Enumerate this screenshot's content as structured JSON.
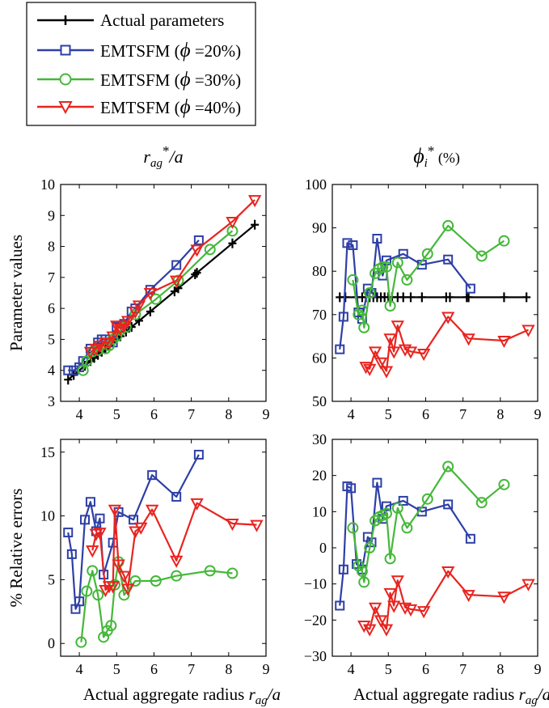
{
  "figure": {
    "col_titles": [
      {
        "base": "r",
        "sub": "ag",
        "sup": "*",
        "tail": "/a"
      },
      {
        "base": "ϕ",
        "sub": "i",
        "sup": "*",
        "tail": " (%)"
      }
    ],
    "xlabel": {
      "prefix": "Actual aggregate radius ",
      "base": "r",
      "sub": "ag",
      "tail": "/a"
    },
    "ylabel_top": "Parameter values",
    "ylabel_bottom": "% Relative errors"
  },
  "legend": {
    "entries": [
      {
        "series": "actual",
        "text": "Actual parameters"
      },
      {
        "series": "s20",
        "prefix": "EMTSFM (",
        "phi": "ϕ",
        "suffix": " =20%)"
      },
      {
        "series": "s30",
        "prefix": "EMTSFM (",
        "phi": "ϕ",
        "suffix": " =30%)"
      },
      {
        "series": "s40",
        "prefix": "EMTSFM (",
        "phi": "ϕ",
        "suffix": " =40%)"
      }
    ]
  },
  "colors": {
    "actual": "#000000",
    "s20": "#2e3fa6",
    "s30": "#45b83a",
    "s40": "#e8241f"
  },
  "chart_data": [
    {
      "type": "line",
      "panel": "top-left",
      "xlim": [
        3.5,
        9
      ],
      "ylim": [
        3,
        10
      ],
      "xticks": [
        4,
        5,
        6,
        7,
        8,
        9
      ],
      "yticks": [
        3,
        4,
        5,
        6,
        7,
        8,
        9,
        10
      ],
      "series": [
        {
          "key": "actual",
          "marker": "plus",
          "x": [
            3.7,
            3.85,
            4.15,
            4.3,
            4.4,
            4.5,
            4.6,
            4.7,
            4.8,
            4.9,
            5.0,
            5.1,
            5.25,
            5.4,
            5.6,
            5.9,
            6.55,
            6.65,
            7.1,
            7.15,
            8.1,
            8.7
          ],
          "y": [
            3.7,
            3.85,
            4.15,
            4.3,
            4.4,
            4.5,
            4.6,
            4.7,
            4.8,
            4.9,
            5.0,
            5.1,
            5.25,
            5.4,
            5.6,
            5.9,
            6.55,
            6.65,
            7.1,
            7.15,
            8.1,
            8.7
          ]
        },
        {
          "key": "s20",
          "marker": "square",
          "x": [
            3.7,
            3.85,
            4.0,
            4.1,
            4.3,
            4.5,
            4.6,
            4.7,
            4.9,
            5.0,
            5.2,
            5.4,
            5.5,
            5.9,
            6.6,
            7.2
          ],
          "y": [
            4.0,
            4.0,
            4.1,
            4.3,
            4.7,
            4.9,
            5.0,
            5.0,
            4.9,
            5.4,
            5.5,
            5.9,
            6.0,
            6.6,
            7.4,
            8.2
          ]
        },
        {
          "key": "s30",
          "marker": "circle",
          "x": [
            4.1,
            4.2,
            4.35,
            4.5,
            4.7,
            4.8,
            4.9,
            5.0,
            5.1,
            5.25,
            5.5,
            6.05,
            6.65,
            7.5,
            8.1
          ],
          "y": [
            4.0,
            4.3,
            4.6,
            4.65,
            4.7,
            4.8,
            5.0,
            5.1,
            5.3,
            5.4,
            5.8,
            6.3,
            6.9,
            7.9,
            8.5
          ]
        },
        {
          "key": "s40",
          "marker": "triangle",
          "x": [
            4.3,
            4.45,
            4.55,
            4.7,
            4.8,
            4.9,
            5.0,
            5.1,
            5.2,
            5.3,
            5.5,
            5.6,
            5.9,
            6.6,
            7.15,
            8.1,
            8.7
          ],
          "y": [
            4.6,
            4.7,
            4.8,
            4.9,
            4.9,
            5.1,
            5.45,
            5.35,
            5.45,
            5.6,
            5.9,
            6.1,
            6.5,
            6.9,
            7.9,
            8.8,
            9.5
          ]
        }
      ]
    },
    {
      "type": "line",
      "panel": "top-right",
      "xlim": [
        3.5,
        9
      ],
      "ylim": [
        50,
        100
      ],
      "xticks": [
        4,
        5,
        6,
        7,
        8,
        9
      ],
      "yticks": [
        50,
        60,
        70,
        80,
        90,
        100
      ],
      "series": [
        {
          "key": "actual",
          "marker": "plus",
          "x": [
            3.7,
            3.85,
            4.15,
            4.3,
            4.4,
            4.5,
            4.6,
            4.7,
            4.8,
            4.9,
            5.0,
            5.1,
            5.25,
            5.4,
            5.6,
            5.9,
            6.55,
            6.65,
            7.1,
            7.15,
            8.1,
            8.7
          ],
          "y": [
            74,
            74,
            74,
            74,
            74,
            74,
            74,
            74,
            74,
            74,
            74,
            74,
            74,
            74,
            74,
            74,
            74,
            74,
            74,
            74,
            74,
            74
          ]
        },
        {
          "key": "s20",
          "marker": "square",
          "x": [
            3.7,
            3.8,
            3.9,
            4.05,
            4.2,
            4.3,
            4.45,
            4.55,
            4.7,
            4.85,
            4.95,
            5.4,
            5.9,
            6.6,
            7.2
          ],
          "y": [
            62,
            69.5,
            86.5,
            86,
            70.5,
            69,
            76,
            75,
            87.5,
            79,
            82.5,
            84,
            81.5,
            82.7,
            76
          ]
        },
        {
          "key": "s30",
          "marker": "circle",
          "x": [
            4.05,
            4.2,
            4.3,
            4.35,
            4.5,
            4.65,
            4.75,
            4.85,
            4.95,
            5.05,
            5.25,
            5.5,
            6.05,
            6.6,
            7.5,
            8.1
          ],
          "y": [
            78,
            70,
            71,
            67,
            75,
            79.5,
            80.5,
            81,
            81,
            72,
            82,
            78,
            84,
            90.5,
            83.5,
            87
          ]
        },
        {
          "key": "s40",
          "marker": "triangle",
          "x": [
            4.4,
            4.5,
            4.65,
            4.8,
            4.95,
            5.05,
            5.15,
            5.25,
            5.45,
            5.6,
            5.95,
            6.6,
            7.15,
            8.1,
            8.75
          ],
          "y": [
            58,
            57.5,
            61.5,
            59,
            57,
            64.5,
            61.5,
            67.5,
            62,
            61.5,
            61,
            69.5,
            64.5,
            64,
            66.5
          ]
        }
      ]
    },
    {
      "type": "line",
      "panel": "bottom-left",
      "xlim": [
        3.5,
        9
      ],
      "ylim": [
        -1,
        16
      ],
      "xticks": [
        4,
        5,
        6,
        7,
        8,
        9
      ],
      "yticks": [
        0,
        5,
        10,
        15
      ],
      "series": [
        {
          "key": "s20",
          "marker": "square",
          "x": [
            3.7,
            3.8,
            3.9,
            4.0,
            4.15,
            4.3,
            4.45,
            4.55,
            4.65,
            4.9,
            5.05,
            5.45,
            5.95,
            6.6,
            7.2
          ],
          "y": [
            8.7,
            7.0,
            2.7,
            3.3,
            9.7,
            11.1,
            8.8,
            9.8,
            5.4,
            7.9,
            10.3,
            9.7,
            13.2,
            11.5,
            14.8
          ]
        },
        {
          "key": "s30",
          "marker": "circle",
          "x": [
            4.05,
            4.2,
            4.35,
            4.5,
            4.65,
            4.75,
            4.85,
            4.95,
            5.05,
            5.2,
            5.5,
            6.05,
            6.6,
            7.5,
            8.1
          ],
          "y": [
            0.1,
            4.1,
            5.7,
            3.8,
            0.5,
            1.0,
            1.4,
            4.6,
            6.4,
            3.8,
            4.9,
            4.9,
            5.3,
            5.7,
            5.5
          ]
        },
        {
          "key": "s40",
          "marker": "triangle",
          "x": [
            4.35,
            4.45,
            4.55,
            4.7,
            4.8,
            4.9,
            4.95,
            5.05,
            5.2,
            5.3,
            5.5,
            5.65,
            5.95,
            6.6,
            7.15,
            8.1,
            8.75
          ],
          "y": [
            7.3,
            8.6,
            8.7,
            4.2,
            4.5,
            4.5,
            10.5,
            6.2,
            5.3,
            4.3,
            8.8,
            9.1,
            10.5,
            6.5,
            11.0,
            9.4,
            9.3
          ]
        }
      ]
    },
    {
      "type": "line",
      "panel": "bottom-right",
      "xlim": [
        3.5,
        9
      ],
      "ylim": [
        -30,
        30
      ],
      "xticks": [
        4,
        5,
        6,
        7,
        8,
        9
      ],
      "yticks": [
        -30,
        -20,
        -10,
        0,
        10,
        20,
        30
      ],
      "series": [
        {
          "key": "s20",
          "marker": "square",
          "x": [
            3.7,
            3.8,
            3.9,
            4.0,
            4.15,
            4.3,
            4.45,
            4.55,
            4.7,
            4.85,
            4.95,
            5.4,
            5.9,
            6.6,
            7.2
          ],
          "y": [
            -16,
            -6,
            17,
            16.5,
            -4.5,
            -6,
            3,
            1.5,
            18,
            8,
            11.5,
            13,
            10,
            12,
            2.5
          ]
        },
        {
          "key": "s30",
          "marker": "circle",
          "x": [
            4.05,
            4.2,
            4.3,
            4.35,
            4.5,
            4.65,
            4.75,
            4.85,
            4.95,
            5.05,
            5.25,
            5.5,
            6.05,
            6.6,
            7.5,
            8.1
          ],
          "y": [
            5.5,
            -5,
            -6.5,
            -9.5,
            0,
            7.5,
            8.5,
            9,
            9.5,
            -3,
            11,
            5.5,
            13.5,
            22.5,
            12.5,
            17.5
          ]
        },
        {
          "key": "s40",
          "marker": "triangle",
          "x": [
            4.35,
            4.5,
            4.65,
            4.8,
            4.95,
            5.05,
            5.15,
            5.25,
            5.45,
            5.6,
            5.95,
            6.6,
            7.15,
            8.1,
            8.75
          ],
          "y": [
            -21.5,
            -22.5,
            -16.5,
            -20,
            -22.5,
            -12.5,
            -16,
            -9,
            -16.5,
            -17,
            -17.5,
            -6.5,
            -13,
            -13.5,
            -10
          ]
        }
      ]
    }
  ]
}
